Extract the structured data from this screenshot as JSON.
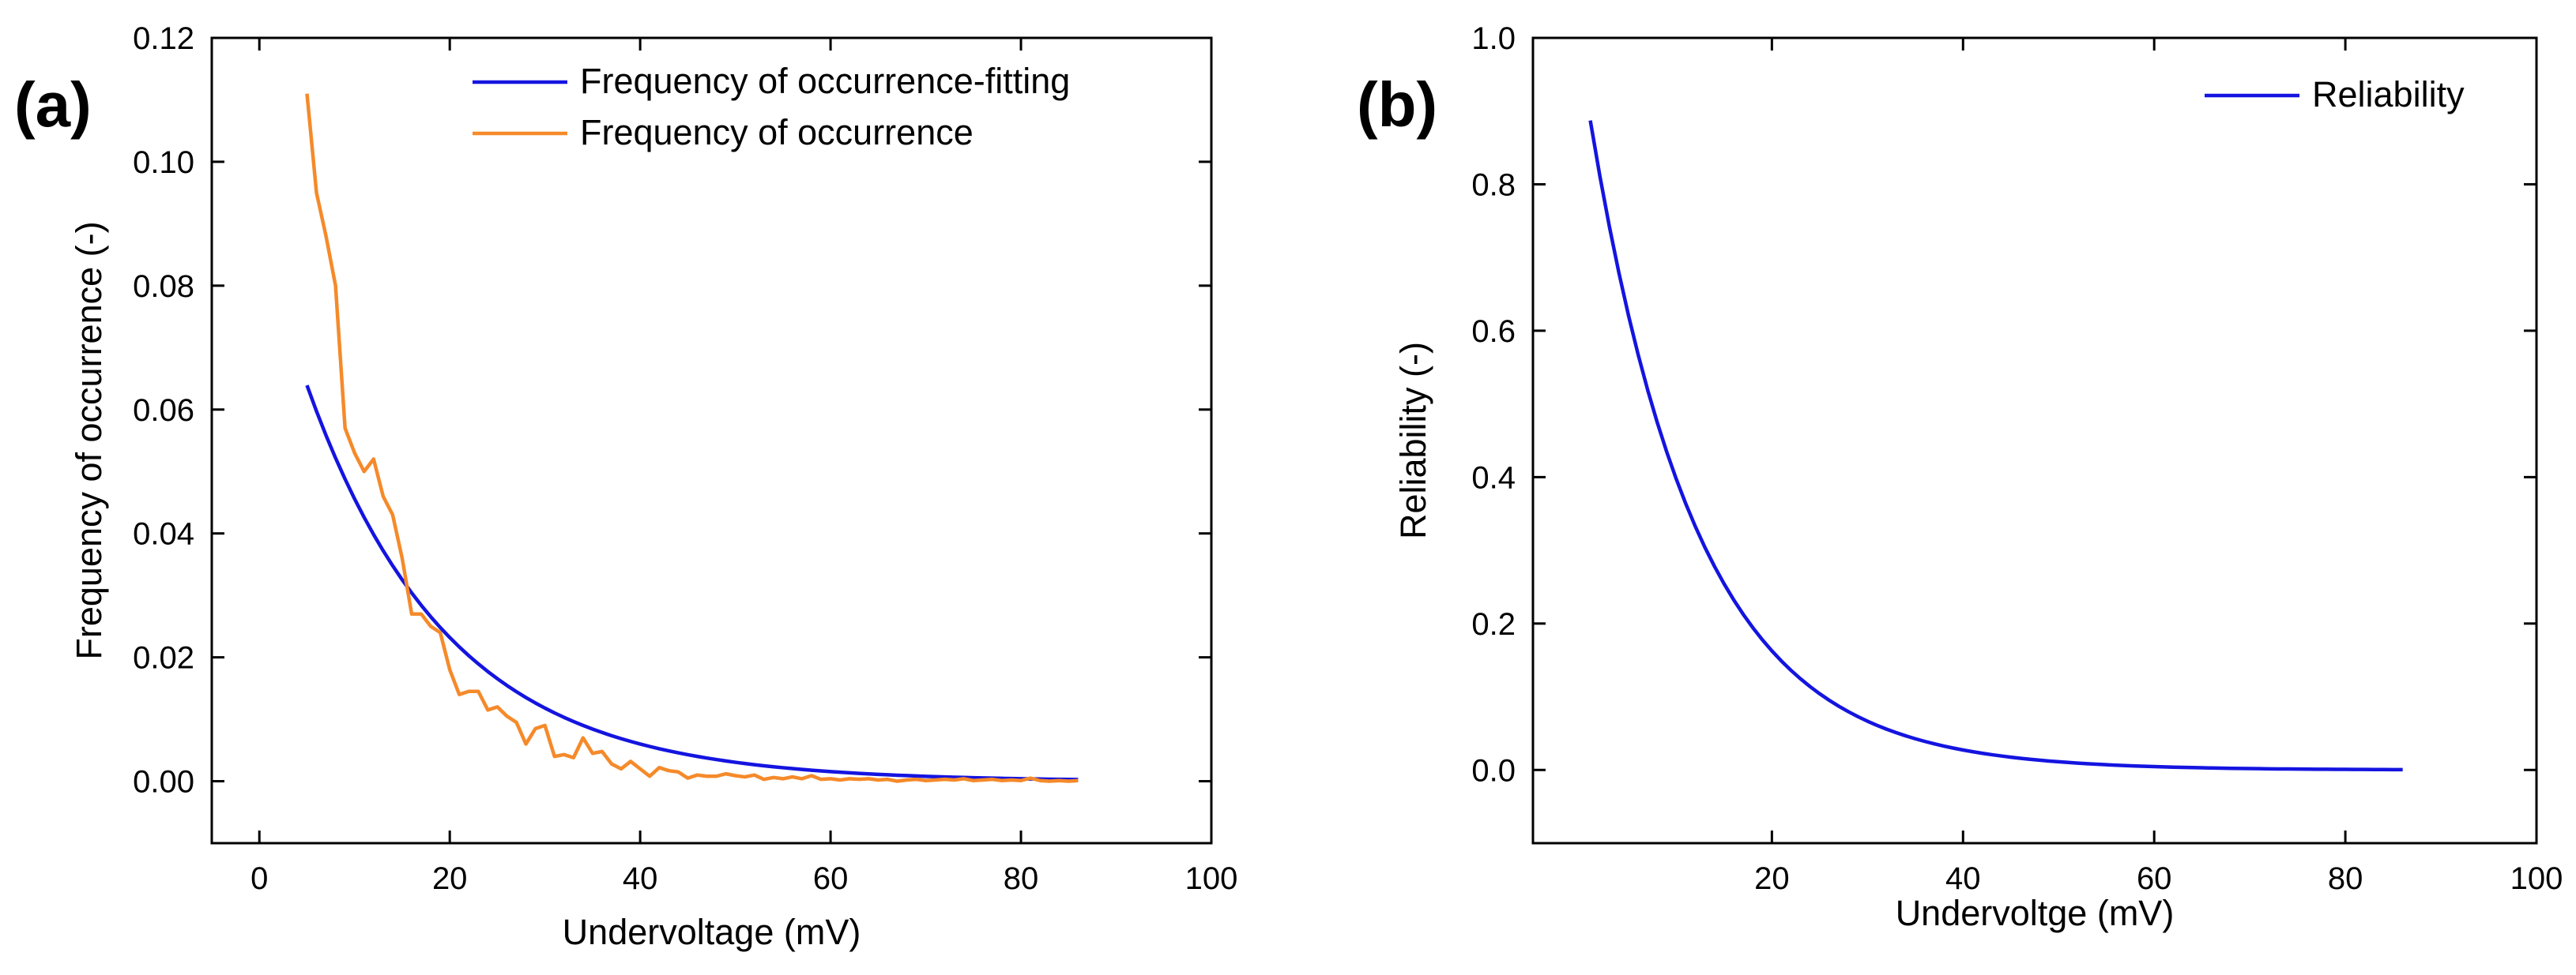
{
  "colors": {
    "fitting": "#1414e0",
    "observed": "#f58a2a",
    "reliability": "#1414e0"
  },
  "chart_data": [
    {
      "panel_label": "(a)",
      "type": "line",
      "xlabel": "Undervoltage (mV)",
      "ylabel": "Frequency of occurrence (-)",
      "xlim": [
        -5,
        100
      ],
      "ylim": [
        -0.01,
        0.12
      ],
      "xticks": [
        "0",
        "20",
        "40",
        "60",
        "80",
        "100"
      ],
      "yticks": [
        "0.00",
        "0.02",
        "0.04",
        "0.06",
        "0.08",
        "0.10",
        "0.12"
      ],
      "legend": [
        "Frequency of occurrence-fitting",
        "Frequency of occurrence"
      ],
      "series": [
        {
          "name": "Frequency of occurrence-fitting",
          "color_key": "fitting",
          "model": {
            "form": "a*exp(-x/t)",
            "a": 0.0896,
            "t": 14.8,
            "x_start": 5,
            "x_end": 86,
            "step": 1
          }
        },
        {
          "name": "Frequency of occurrence",
          "color_key": "observed",
          "x": [
            5,
            6,
            7,
            8,
            9,
            10,
            11,
            12,
            13,
            14,
            15,
            16,
            17,
            18,
            19,
            20,
            21,
            22,
            23,
            24,
            25,
            26,
            27,
            28,
            29,
            30,
            31,
            32,
            33,
            34,
            35,
            36,
            37,
            38,
            39,
            40,
            41,
            42,
            43,
            44,
            45,
            46,
            47,
            48,
            49,
            50,
            51,
            52,
            53,
            54,
            55,
            56,
            57,
            58,
            59,
            60,
            61,
            62,
            63,
            64,
            65,
            66,
            67,
            68,
            69,
            70,
            71,
            72,
            73,
            74,
            75,
            76,
            77,
            78,
            79,
            80,
            81,
            82,
            83,
            84,
            85,
            86
          ],
          "y": [
            0.111,
            0.095,
            0.088,
            0.08,
            0.057,
            0.053,
            0.05,
            0.052,
            0.046,
            0.043,
            0.036,
            0.027,
            0.027,
            0.025,
            0.024,
            0.018,
            0.014,
            0.0145,
            0.0145,
            0.0115,
            0.012,
            0.0105,
            0.0095,
            0.006,
            0.0085,
            0.009,
            0.004,
            0.0043,
            0.0038,
            0.007,
            0.0045,
            0.0048,
            0.0028,
            0.002,
            0.0032,
            0.002,
            0.0008,
            0.0022,
            0.0017,
            0.0015,
            0.0005,
            0.001,
            0.0008,
            0.0008,
            0.0012,
            0.0009,
            0.0007,
            0.001,
            0.0003,
            0.0006,
            0.0004,
            0.0007,
            0.0004,
            0.0009,
            0.0003,
            0.0004,
            0.0002,
            0.0004,
            0.0003,
            0.0004,
            0.0002,
            0.0003,
            0.0,
            0.0002,
            0.0003,
            0.0001,
            0.0002,
            0.0003,
            0.0002,
            0.0004,
            0.0001,
            0.0002,
            0.0003,
            0.0001,
            0.0002,
            0.0001,
            0.0005,
            0.0001,
            0.0,
            0.0001,
            0.0,
            0.0001
          ]
        }
      ]
    },
    {
      "panel_label": "(b)",
      "type": "line",
      "xlabel": "Undervoltge (mV)",
      "ylabel": "Reliability (-)",
      "xlim": [
        -5,
        100
      ],
      "ylim": [
        -0.1,
        1.0
      ],
      "xticks": [
        "20",
        "40",
        "60",
        "80",
        "100"
      ],
      "yticks": [
        "0.0",
        "0.2",
        "0.4",
        "0.6",
        "0.8",
        "1.0"
      ],
      "legend": [
        "Reliability"
      ],
      "series": [
        {
          "name": "Reliability",
          "color_key": "reliability",
          "model": {
            "form": "a*exp(-x/t)",
            "a": 0.97,
            "t": 11.2,
            "x_start": 1,
            "x_end": 86,
            "step": 1
          }
        }
      ]
    }
  ]
}
